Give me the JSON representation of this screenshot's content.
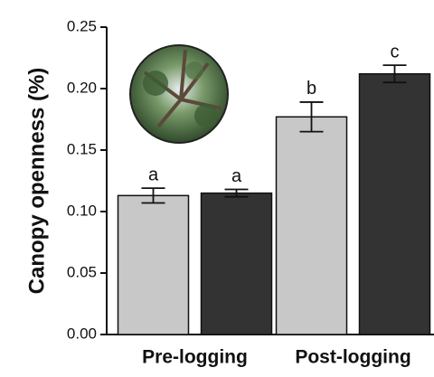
{
  "chart_data": {
    "type": "bar",
    "y_label": "Canopy openness (%)",
    "categories": [
      "Pre-logging",
      "Post-logging"
    ],
    "series": [
      {
        "color": "#c8c8c8",
        "values": [
          0.113,
          0.177
        ],
        "errors": [
          0.006,
          0.012
        ],
        "letters": [
          "a",
          "b"
        ]
      },
      {
        "color": "#333333",
        "values": [
          0.115,
          0.212
        ],
        "errors": [
          0.003,
          0.007
        ],
        "letters": [
          "a",
          "c"
        ]
      }
    ],
    "ylim": [
      0,
      0.25
    ],
    "yticks": [
      {
        "value": 0,
        "label": "0.00"
      },
      0.05,
      {
        "value": 0.1,
        "label": "0.10"
      },
      0.15,
      {
        "value": 0.2,
        "label": "0.20"
      },
      0.25
    ],
    "grid": false
  }
}
